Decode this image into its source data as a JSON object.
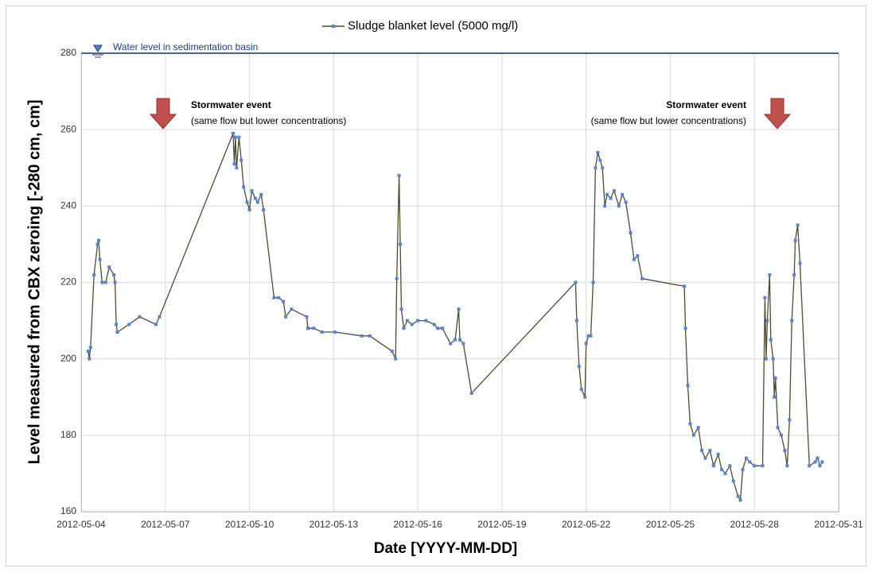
{
  "chart_data": {
    "type": "line",
    "legend": "top",
    "grid": true,
    "xlabel": "Date [YYYY-MM-DD]",
    "ylabel": "Level measured from CBX zeroing [-280 cm, cm]",
    "xlim": [
      "2012-05-04",
      "2012-05-31"
    ],
    "xticks": [
      "2012-05-04",
      "2012-05-07",
      "2012-05-10",
      "2012-05-13",
      "2012-05-16",
      "2012-05-19",
      "2012-05-22",
      "2012-05-25",
      "2012-05-28",
      "2012-05-31"
    ],
    "ylim": [
      160,
      280
    ],
    "yticks": [
      160,
      180,
      200,
      220,
      240,
      260,
      280
    ],
    "water_level": {
      "label": "Water level in sedimentation basin",
      "value": 280,
      "color": "#1f3f73"
    },
    "annotations": [
      {
        "title": "Stormwater event",
        "text": "(same flow but lower concentrations)"
      },
      {
        "title": "Stormwater event",
        "text": "(same flow but lower concentrations)"
      }
    ],
    "x": [
      "2012-05-04T06:00",
      "2012-05-04T07:00",
      "2012-05-04T08:00",
      "2012-05-04T11:00",
      "2012-05-04T14:00",
      "2012-05-04T15:00",
      "2012-05-04T16:00",
      "2012-05-04T18:00",
      "2012-05-04T21:00",
      "2012-05-05T00:00",
      "2012-05-05T04:00",
      "2012-05-05T05:00",
      "2012-05-05T06:00",
      "2012-05-05T07:00",
      "2012-05-05T17:00",
      "2012-05-06T02:00",
      "2012-05-06T16:00",
      "2012-05-06T19:00",
      "2012-05-09T10:00",
      "2012-05-09T11:00",
      "2012-05-09T12:00",
      "2012-05-09T13:00",
      "2012-05-09T15:00",
      "2012-05-09T17:00",
      "2012-05-09T19:00",
      "2012-05-09T22:00",
      "2012-05-10T00:00",
      "2012-05-10T02:00",
      "2012-05-10T05:00",
      "2012-05-10T07:00",
      "2012-05-10T10:00",
      "2012-05-10T12:00",
      "2012-05-10T21:00",
      "2012-05-11T01:00",
      "2012-05-11T05:00",
      "2012-05-11T07:00",
      "2012-05-11T12:00",
      "2012-05-12T01:00",
      "2012-05-12T02:00",
      "2012-05-12T07:00",
      "2012-05-12T14:00",
      "2012-05-13T01:00",
      "2012-05-14T00:00",
      "2012-05-14T07:00",
      "2012-05-15T02:00",
      "2012-05-15T05:00",
      "2012-05-15T06:00",
      "2012-05-15T08:00",
      "2012-05-15T09:00",
      "2012-05-15T10:00",
      "2012-05-15T12:00",
      "2012-05-15T15:00",
      "2012-05-15T19:00",
      "2012-05-16T00:00",
      "2012-05-16T07:00",
      "2012-05-16T14:00",
      "2012-05-16T17:00",
      "2012-05-16T21:00",
      "2012-05-17T04:00",
      "2012-05-17T08:00",
      "2012-05-17T11:00",
      "2012-05-17T12:00",
      "2012-05-17T15:00",
      "2012-05-17T22:00",
      "2012-05-21T15:00",
      "2012-05-21T16:00",
      "2012-05-21T18:00",
      "2012-05-21T20:00",
      "2012-05-21T23:00",
      "2012-05-22T00:00",
      "2012-05-22T02:00",
      "2012-05-22T04:00",
      "2012-05-22T06:00",
      "2012-05-22T08:00",
      "2012-05-22T10:00",
      "2012-05-22T12:00",
      "2012-05-22T14:00",
      "2012-05-22T16:00",
      "2012-05-22T18:00",
      "2012-05-22T21:00",
      "2012-05-23T00:00",
      "2012-05-23T04:00",
      "2012-05-23T07:00",
      "2012-05-23T10:00",
      "2012-05-23T14:00",
      "2012-05-23T17:00",
      "2012-05-23T20:00",
      "2012-05-24T00:00",
      "2012-05-25T12:00",
      "2012-05-25T13:00",
      "2012-05-25T15:00",
      "2012-05-25T17:00",
      "2012-05-25T20:00",
      "2012-05-26T00:00",
      "2012-05-26T03:00",
      "2012-05-26T06:00",
      "2012-05-26T10:00",
      "2012-05-26T13:00",
      "2012-05-26T17:00",
      "2012-05-26T20:00",
      "2012-05-26T23:00",
      "2012-05-27T03:00",
      "2012-05-27T06:00",
      "2012-05-27T10:00",
      "2012-05-27T12:00",
      "2012-05-27T14:00",
      "2012-05-27T17:00",
      "2012-05-27T20:00",
      "2012-05-28T00:00",
      "2012-05-28T07:00",
      "2012-05-28T09:00",
      "2012-05-28T10:00",
      "2012-05-28T11:00",
      "2012-05-28T13:00",
      "2012-05-28T14:00",
      "2012-05-28T16:00",
      "2012-05-28T17:00",
      "2012-05-28T18:00",
      "2012-05-28T20:00",
      "2012-05-28T23:00",
      "2012-05-29T02:00",
      "2012-05-29T04:00",
      "2012-05-29T06:00",
      "2012-05-29T08:00",
      "2012-05-29T10:00",
      "2012-05-29T11:00",
      "2012-05-29T13:00",
      "2012-05-29T15:00",
      "2012-05-29T23:00",
      "2012-05-30T04:00",
      "2012-05-30T06:00",
      "2012-05-30T08:00",
      "2012-05-30T10:00"
    ],
    "series": [
      {
        "name": "Sludge blanket level (5000 mg/l)",
        "color": "#4f4a32",
        "marker_color": "#5b84c4",
        "values": [
          202,
          200,
          203,
          222,
          230,
          231,
          226,
          220,
          220,
          224,
          222,
          220,
          209,
          207,
          209,
          211,
          209,
          211,
          259,
          251,
          258,
          250,
          258,
          252,
          245,
          241,
          239,
          244,
          242,
          241,
          243,
          239,
          216,
          216,
          215,
          211,
          213,
          211,
          208,
          208,
          207,
          207,
          206,
          206,
          202,
          200,
          221,
          248,
          230,
          213,
          208,
          210,
          209,
          210,
          210,
          209,
          208,
          208,
          204,
          205,
          213,
          205,
          204,
          191,
          220,
          210,
          198,
          192,
          190,
          204,
          206,
          206,
          220,
          250,
          254,
          252,
          250,
          240,
          243,
          242,
          244,
          240,
          243,
          241,
          233,
          226,
          227,
          221,
          219,
          208,
          193,
          183,
          180,
          182,
          176,
          174,
          176,
          172,
          175,
          171,
          170,
          172,
          168,
          164,
          163,
          171,
          174,
          173,
          172,
          172,
          216,
          200,
          210,
          222,
          205,
          200,
          190,
          195,
          182,
          180,
          176,
          172,
          184,
          210,
          222,
          231,
          235,
          225,
          172,
          173,
          174,
          172,
          173
        ]
      }
    ]
  }
}
